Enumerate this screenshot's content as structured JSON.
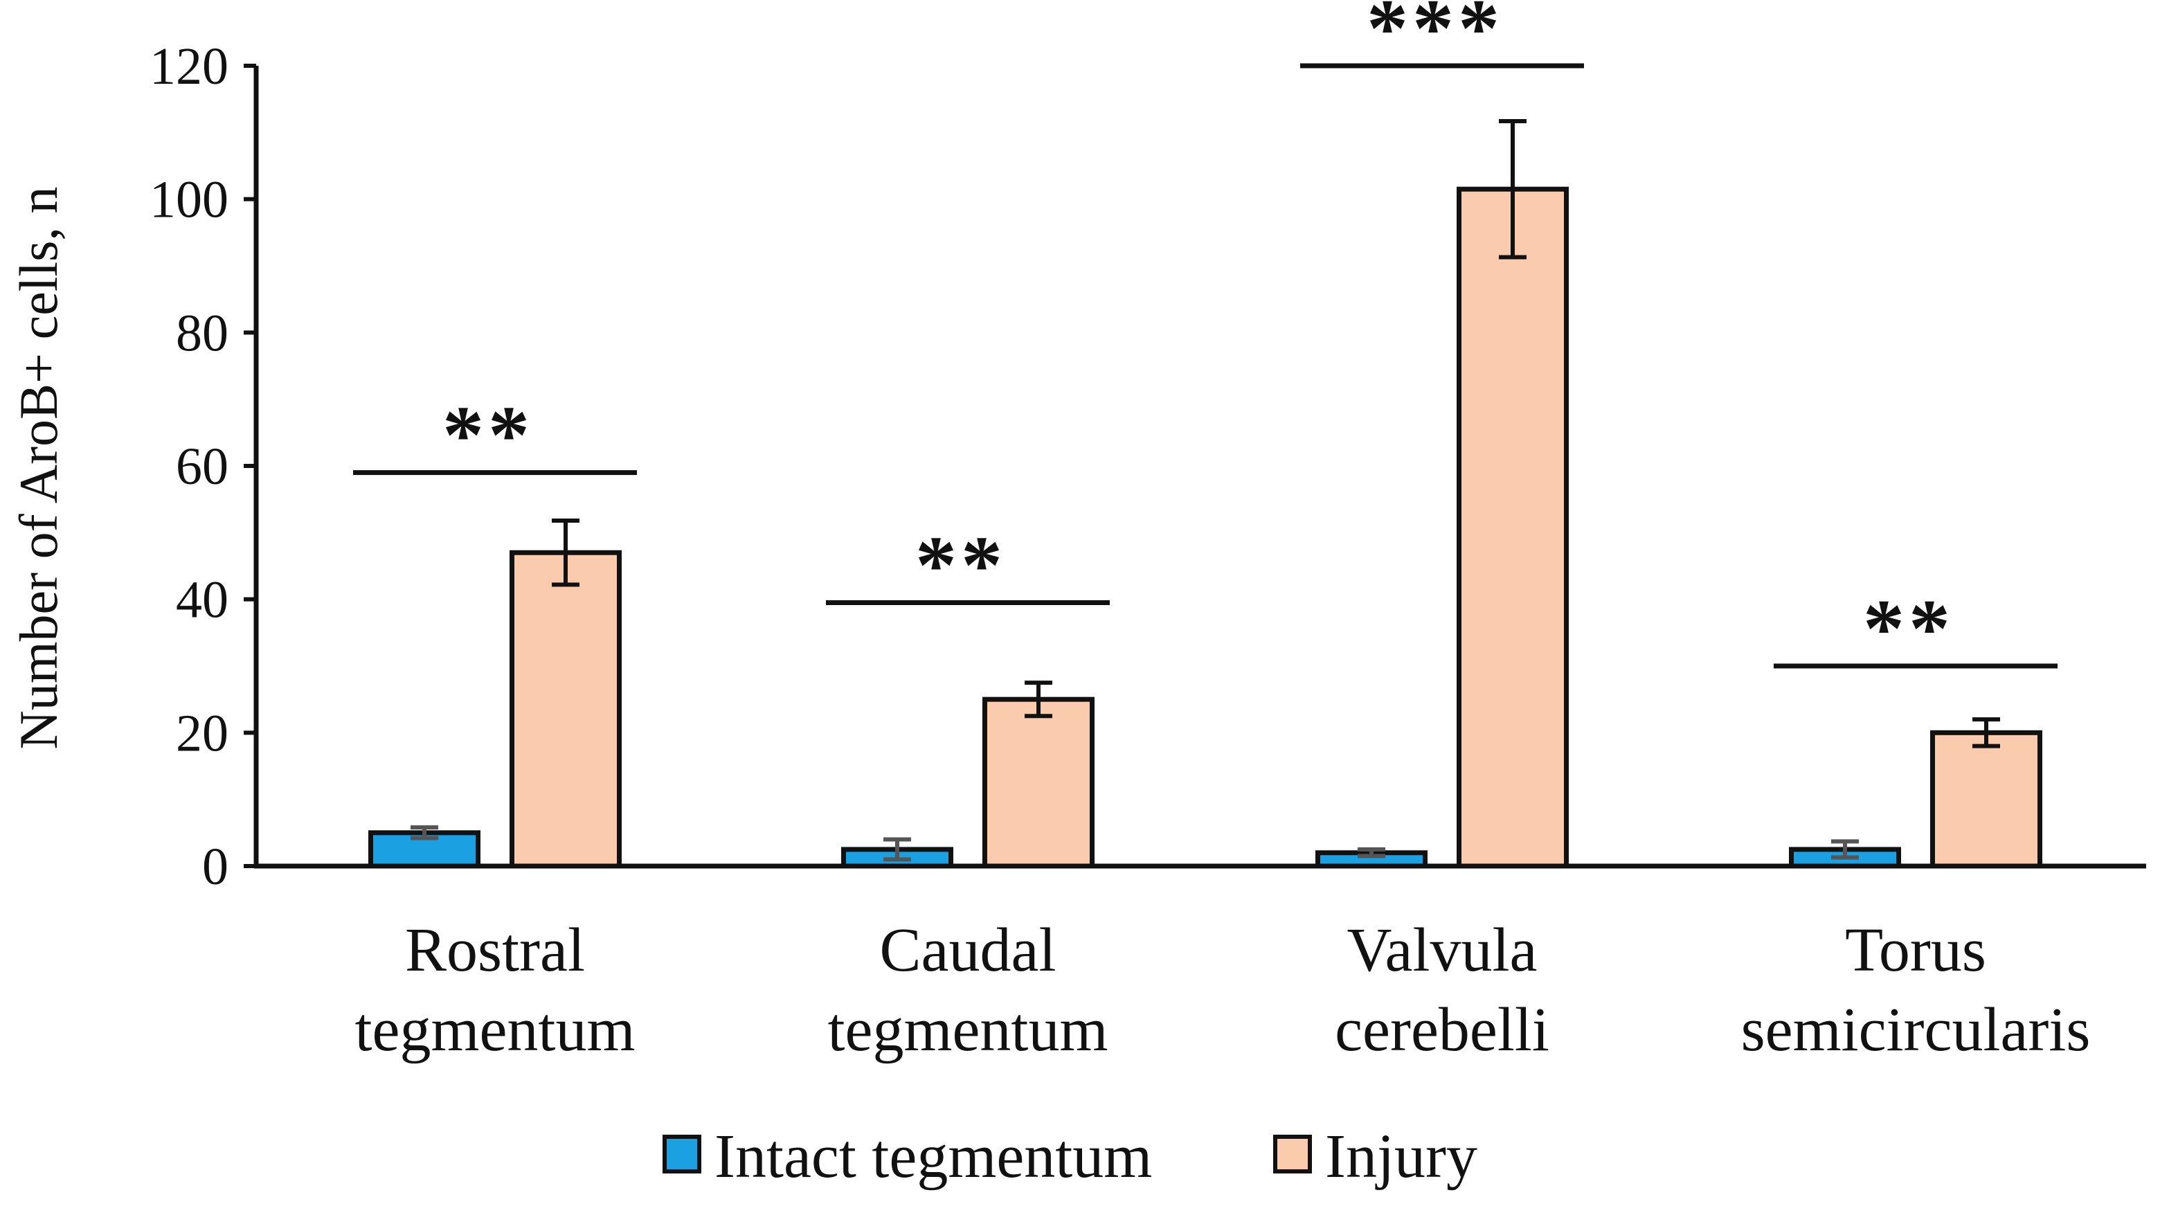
{
  "chart_data": {
    "type": "bar",
    "title": "",
    "xlabel": "",
    "ylabel": "Number of AroB+ cells, n",
    "ylim": [
      0,
      120
    ],
    "yticks": [
      "0",
      "20",
      "40",
      "60",
      "80",
      "100",
      "120"
    ],
    "categories": [
      [
        "Rostral",
        "tegmentum"
      ],
      [
        "Caudal",
        "tegmentum"
      ],
      [
        "Valvula",
        "cerebelli"
      ],
      [
        "Torus",
        "semicircularis"
      ]
    ],
    "series": [
      {
        "name": "Intact tegmentum",
        "color": "#1ba1e2",
        "values": [
          5,
          2.5,
          2,
          2.5
        ],
        "errors": [
          0.8,
          1.5,
          0.5,
          1.2
        ]
      },
      {
        "name": "Injury",
        "color": "#fbcbad",
        "values": [
          47,
          25,
          101.5,
          20
        ],
        "errors": [
          4.8,
          2.5,
          10.2,
          2
        ]
      }
    ],
    "significance": [
      {
        "category_index": 0,
        "label": "**",
        "level": 59
      },
      {
        "category_index": 1,
        "label": "**",
        "level": 39.5
      },
      {
        "category_index": 2,
        "label": "***",
        "level": 120
      },
      {
        "category_index": 3,
        "label": "**",
        "level": 30
      }
    ],
    "legend_position": "bottom-center",
    "grid": false
  }
}
